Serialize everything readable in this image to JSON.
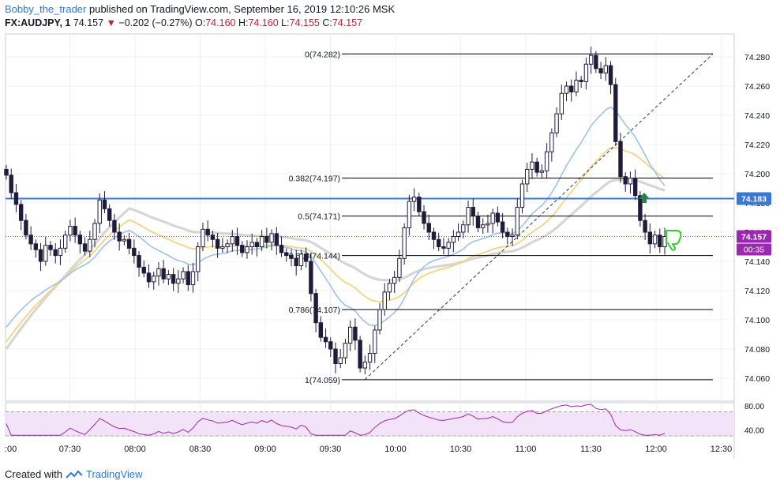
{
  "header": {
    "author": "Bobby_the_trader",
    "published_text": "published on TradingView.com, September 16, 2019 12:10:26 MSK",
    "symbol": "FX:AUDJPY, 1",
    "last": "74.157",
    "change": "−0.202 (−0.27%)",
    "o_label": "O:",
    "o": "74.160",
    "h_label": "H:",
    "h": "74.160",
    "l_label": "L:",
    "l": "74.155",
    "c_label": "C:",
    "c": "74.157"
  },
  "footer": {
    "created_with": "Created with",
    "brand": "TradingView"
  },
  "colors": {
    "candle": "#1f1c3a",
    "ema_blue": "#9cc3ec",
    "ema_yellow": "#f2d482",
    "ema_gray": "#d6d6d6",
    "horizontal_line": "#3a78d8",
    "rsi_line": "#9c27b0",
    "rsi_fill": "#f3e3f8",
    "fib_line": "#000000",
    "label_blue": "#3a78d8",
    "label_purple": "#9c27b0",
    "arrow_up": "#2e7d4f",
    "thumbs_down": "#33cc33"
  },
  "chart_data": {
    "type": "candlestick",
    "x_ticks": [
      ":00",
      "07:30",
      "08:00",
      "08:30",
      "09:00",
      "09:30",
      "10:00",
      "10:30",
      "11:00",
      "11:30",
      "12:00",
      "12:30"
    ],
    "y_ticks": [
      "74.280",
      "74.260",
      "74.240",
      "74.220",
      "74.200",
      "74.180",
      "74.160",
      "74.140",
      "74.120",
      "74.100",
      "74.080",
      "74.060"
    ],
    "ylim": [
      74.047,
      74.29
    ],
    "fib_levels": [
      {
        "label": "0(74.282)",
        "value": 74.282
      },
      {
        "label": "0.382(74.197)",
        "value": 74.197
      },
      {
        "label": "0.5(74.171)",
        "value": 74.171
      },
      {
        "label": "0.618(74.144)",
        "value": 74.144
      },
      {
        "label": "0.786(74.107)",
        "value": 74.107
      },
      {
        "label": "1(74.059)",
        "value": 74.059
      }
    ],
    "horizontal_line": {
      "value": 74.183,
      "label": "74.183"
    },
    "last_price": {
      "value": 74.157,
      "label": "74.157",
      "countdown": "00:35"
    },
    "close_series": [
      74.199,
      74.187,
      74.179,
      74.168,
      74.158,
      74.152,
      74.148,
      74.14,
      74.151,
      74.148,
      74.144,
      74.149,
      74.158,
      74.164,
      74.158,
      74.152,
      74.147,
      74.155,
      74.166,
      74.182,
      74.176,
      74.168,
      74.16,
      74.154,
      74.155,
      74.149,
      74.144,
      74.136,
      74.132,
      74.126,
      74.13,
      74.135,
      74.128,
      74.131,
      74.125,
      74.128,
      74.133,
      74.124,
      74.133,
      74.15,
      74.162,
      74.158,
      74.155,
      74.149,
      74.15,
      74.152,
      74.157,
      74.151,
      74.146,
      74.15,
      74.153,
      74.15,
      74.157,
      74.153,
      74.159,
      74.151,
      74.146,
      74.144,
      74.142,
      74.137,
      74.145,
      74.14,
      74.118,
      74.098,
      74.088,
      74.085,
      74.08,
      74.07,
      74.074,
      74.084,
      74.095,
      74.086,
      74.067,
      74.071,
      74.077,
      74.093,
      74.107,
      74.119,
      74.125,
      74.129,
      74.142,
      74.163,
      74.181,
      74.184,
      74.174,
      74.166,
      74.16,
      74.155,
      74.15,
      74.149,
      74.153,
      74.157,
      74.16,
      74.165,
      74.177,
      74.171,
      74.163,
      74.165,
      74.166,
      74.173,
      74.167,
      74.16,
      74.157,
      74.158,
      74.177,
      74.193,
      74.203,
      74.208,
      74.201,
      74.202,
      74.215,
      74.228,
      74.241,
      74.255,
      74.26,
      74.256,
      74.264,
      74.263,
      74.275,
      74.281,
      74.272,
      74.269,
      74.274,
      74.261,
      74.222,
      74.198,
      74.193,
      74.197,
      74.185,
      74.168,
      74.16,
      74.152,
      74.158,
      74.15,
      74.157
    ],
    "rsi": {
      "ylim": [
        30,
        85
      ],
      "y_ticks": [
        "80.00",
        "40.00"
      ],
      "bands": [
        70,
        30
      ]
    }
  }
}
